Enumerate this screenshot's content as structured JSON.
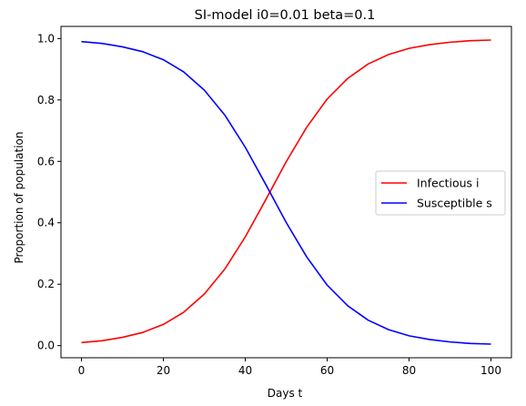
{
  "chart_data": {
    "type": "line",
    "title": "SI-model  i0=0.01  beta=0.1",
    "xlabel": "Days t",
    "ylabel": "Proportion of population",
    "xlim": [
      -5,
      105
    ],
    "ylim": [
      -0.0395,
      1.0395
    ],
    "xticks": [
      0,
      20,
      40,
      60,
      80,
      100
    ],
    "yticks": [
      0.0,
      0.2,
      0.4,
      0.6,
      0.8,
      1.0
    ],
    "xtick_labels": [
      "0",
      "20",
      "40",
      "60",
      "80",
      "100"
    ],
    "ytick_labels": [
      "0.0",
      "0.2",
      "0.4",
      "0.6",
      "0.8",
      "1.0"
    ],
    "grid": false,
    "legend_position": "center-right",
    "x": [
      0,
      5,
      10,
      15,
      20,
      25,
      30,
      35,
      40,
      45,
      50,
      55,
      60,
      65,
      70,
      75,
      80,
      85,
      90,
      95,
      100
    ],
    "series": [
      {
        "name": "Infectious i",
        "color": "#ff0000",
        "values": [
          0.01,
          0.016,
          0.027,
          0.043,
          0.069,
          0.109,
          0.168,
          0.249,
          0.354,
          0.475,
          0.599,
          0.711,
          0.803,
          0.87,
          0.917,
          0.948,
          0.968,
          0.98,
          0.988,
          0.993,
          0.995
        ]
      },
      {
        "name": "Susceptible s",
        "color": "#0000ff",
        "values": [
          0.99,
          0.984,
          0.973,
          0.957,
          0.931,
          0.891,
          0.832,
          0.751,
          0.646,
          0.525,
          0.401,
          0.289,
          0.197,
          0.13,
          0.083,
          0.052,
          0.032,
          0.02,
          0.012,
          0.007,
          0.005
        ]
      }
    ]
  }
}
